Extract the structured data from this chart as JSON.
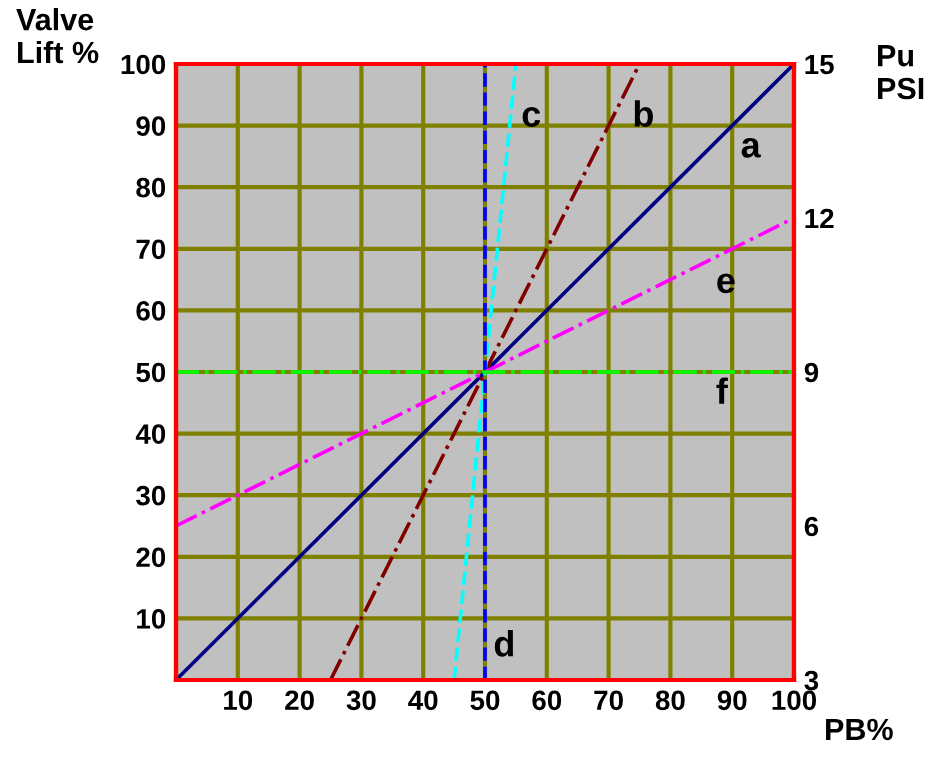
{
  "chart_data": {
    "type": "line",
    "xlabel": "PB%",
    "ylabel": "Valve\nLift %",
    "y2label": "Pu\nPSI",
    "xlim": [
      0,
      100
    ],
    "xticks": [
      {
        "value": 0,
        "label": null
      },
      10,
      20,
      30,
      40,
      50,
      60,
      70,
      80,
      90,
      100
    ],
    "ylim": [
      0,
      100
    ],
    "yticks": [
      {
        "value": 0,
        "label": null
      },
      10,
      20,
      30,
      40,
      50,
      60,
      70,
      80,
      90,
      100
    ],
    "y2lim": [
      3,
      15
    ],
    "y2ticks": [
      3,
      6,
      9,
      12,
      15
    ],
    "grid": true,
    "marker": "none",
    "series": [
      {
        "color": "#000080",
        "x": [
          0,
          100
        ],
        "values": [
          0,
          100
        ],
        "line_style": "solid"
      },
      {
        "color": "#800000",
        "x": [
          25,
          75
        ],
        "values": [
          0,
          100
        ],
        "line_style": "dashdot"
      },
      {
        "color": "#00ffff",
        "x": [
          45,
          55
        ],
        "values": [
          0,
          100
        ],
        "line_style": "dashed"
      },
      {
        "color": "#0000ff",
        "x": [
          50,
          50
        ],
        "values": [
          0,
          100
        ],
        "line_style": "dashed"
      },
      {
        "color": "#ff00ff",
        "x": [
          0,
          100
        ],
        "values": [
          25,
          75
        ],
        "line_style": "dashdot"
      },
      {
        "color": "#00ff00",
        "x": [
          0,
          100
        ],
        "values": [
          50,
          50
        ],
        "line_style": "dashdot"
      }
    ],
    "annotations": [
      {
        "text": "a",
        "x": 90,
        "y": 90
      },
      {
        "text": "b",
        "x": 72.5,
        "y": 95
      },
      {
        "text": "c",
        "x": 54.5,
        "y": 95
      },
      {
        "text": "d",
        "x": 50,
        "y": 9
      },
      {
        "text": "e",
        "x": 86,
        "y": 68
      },
      {
        "text": "f",
        "x": 86,
        "y": 50
      }
    ]
  }
}
